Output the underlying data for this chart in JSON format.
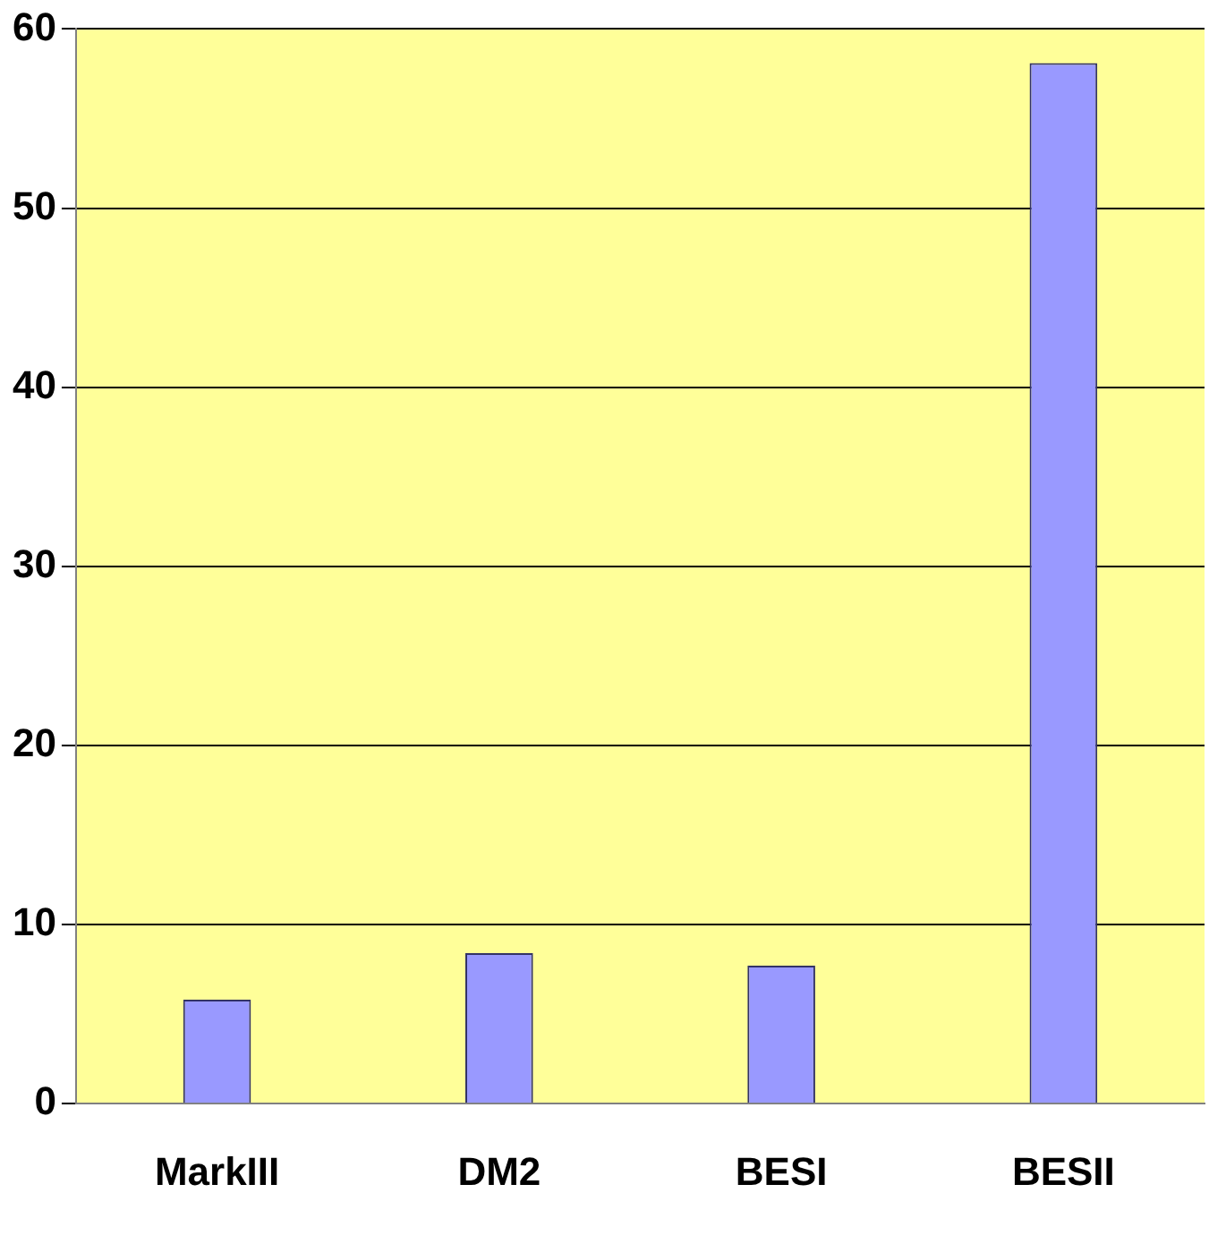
{
  "chart_data": {
    "type": "bar",
    "categories": [
      "MarkIII",
      "DM2",
      "BESI",
      "BESII"
    ],
    "values": [
      5.8,
      8.4,
      7.7,
      58.1
    ],
    "color": "#9999ff",
    "ylim": [
      0,
      60
    ],
    "yticks": [
      0,
      10,
      20,
      30,
      40,
      50,
      60
    ],
    "grid": "y",
    "legend": false
  }
}
